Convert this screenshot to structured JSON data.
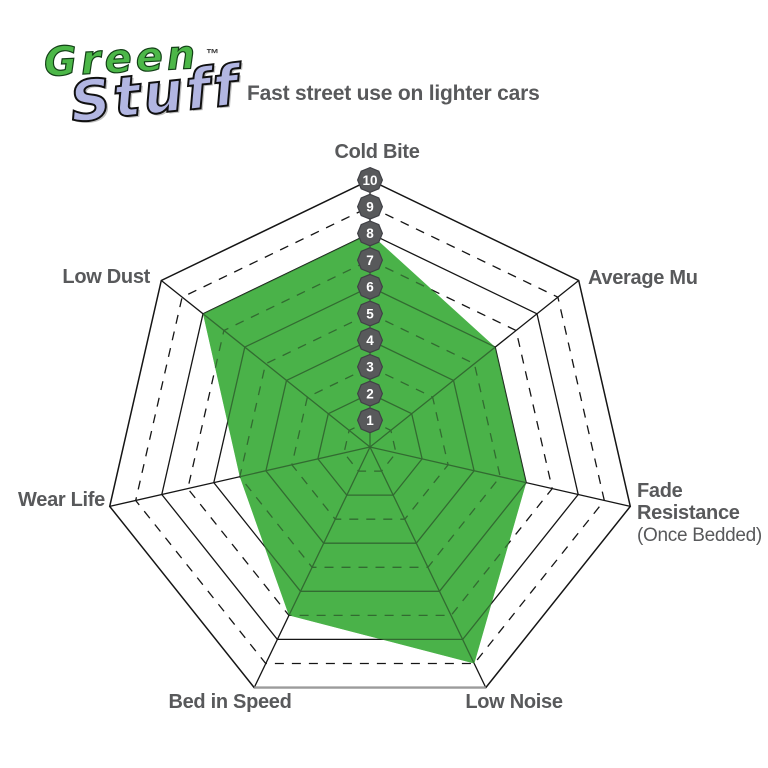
{
  "logo": {
    "line1": "Green",
    "line2": "Stuff",
    "trademark": "™",
    "line1_color": "#4cb748",
    "line2_color": "#b2b6e2"
  },
  "header": {
    "subtitle": "Fast street use on lighter cars"
  },
  "chart_data": {
    "type": "radar",
    "title": "",
    "axes_clockwise_from_top": [
      "Cold Bite",
      "Average Mu",
      "Fade Resistance",
      "Low Noise",
      "Bed in Speed",
      "Wear Life",
      "Low Dust"
    ],
    "axis_sublabels": [
      "",
      "",
      "(Once Bedded)",
      "",
      "",
      "",
      ""
    ],
    "values": [
      8,
      6,
      6,
      9,
      7,
      5,
      8
    ],
    "scale_min": 0,
    "scale_max": 10,
    "tick_labels": [
      "1",
      "2",
      "3",
      "4",
      "5",
      "6",
      "7",
      "8",
      "9",
      "10"
    ],
    "grid": {
      "solid_ring_levels": [
        2,
        4,
        6,
        8,
        10
      ],
      "dashed_ring_levels": [
        1,
        3,
        5,
        7,
        9
      ],
      "spokes": 7
    },
    "legend_position": "none",
    "colors": {
      "fill": "#4bb249",
      "grid_line": "#151515",
      "outer_bottom_edge": "#9b9b9b",
      "tick_badge_fill": "#58595b",
      "tick_badge_border": "#404146",
      "tick_badge_text": "#ffffff",
      "label_text": "#58595b"
    }
  }
}
